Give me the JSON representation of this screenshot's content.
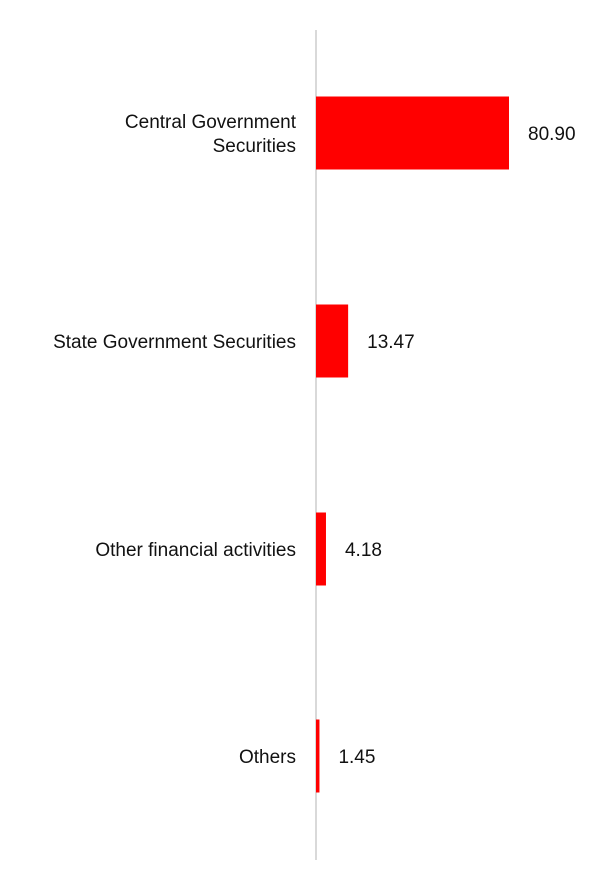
{
  "chart_data": {
    "type": "bar",
    "orientation": "horizontal",
    "categories": [
      "Central Government Securities",
      "State Government Securities",
      "Other financial activities",
      "Others"
    ],
    "category_lines": [
      [
        "Central Government",
        "Securities"
      ],
      [
        "State Government Securities"
      ],
      [
        "Other financial activities"
      ],
      [
        "Others"
      ]
    ],
    "values": [
      80.9,
      13.47,
      4.18,
      1.45
    ],
    "value_labels": [
      "80.90",
      "13.47",
      "4.18",
      "1.45"
    ],
    "xlim": [
      0,
      80.9
    ],
    "grid": false,
    "legend": "none"
  },
  "colors": {
    "bar": "#ff0000",
    "axis": "#d9d9d9",
    "text": "#111111"
  }
}
